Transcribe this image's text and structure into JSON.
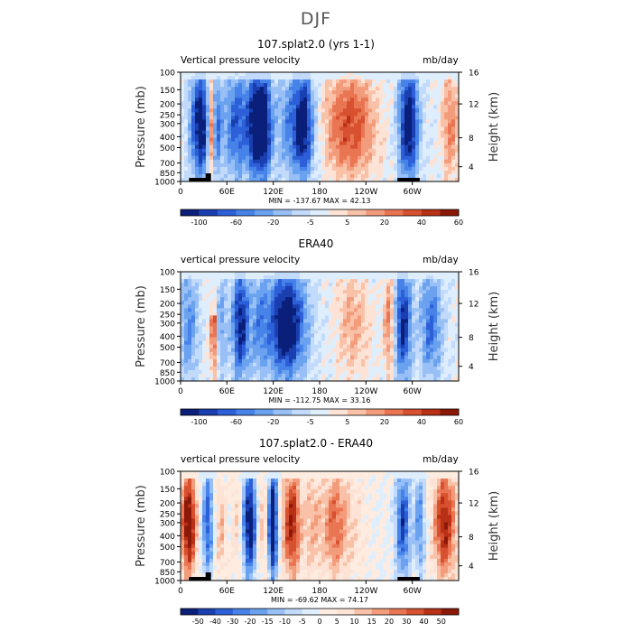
{
  "title": "DJF",
  "chart_data": [
    {
      "type": "heatmap",
      "title": "107.splat2.0 (yrs 1-1)",
      "left_label": "Vertical pressure velocity",
      "units": "mb/day",
      "ylabel": "Pressure (mb)",
      "y2label": "Height (km)",
      "xticks": [
        "0",
        "60E",
        "120E",
        "180",
        "120W",
        "60W"
      ],
      "yticks": [
        "100",
        "150",
        "200",
        "250",
        "300",
        "400",
        "500",
        "700",
        "850",
        "1000"
      ],
      "y2ticks": [
        "4",
        "8",
        "12",
        "16"
      ],
      "stats": "MIN = -137.67   MAX =  42.13",
      "colorbar_labels": [
        "-100",
        "-60",
        "-20",
        "-5",
        "5",
        "20",
        "40",
        "60"
      ],
      "colorbar_colors": [
        "#0a1f7a",
        "#1a3fb0",
        "#2c5fd8",
        "#4682e8",
        "#6aa2f0",
        "#98c0f6",
        "#c2dafb",
        "#dfeefd",
        "#fde3d6",
        "#f9c2a8",
        "#f39c7c",
        "#e97553",
        "#d7502f",
        "#b83015",
        "#8c1808"
      ]
    },
    {
      "type": "heatmap",
      "title": "ERA40",
      "left_label": "vertical pressure velocity",
      "units": "mb/day",
      "ylabel": "Pressure (mb)",
      "y2label": "Height (km)",
      "xticks": [
        "0",
        "60E",
        "120E",
        "180",
        "120W",
        "60W"
      ],
      "yticks": [
        "100",
        "150",
        "200",
        "250",
        "300",
        "400",
        "500",
        "700",
        "850",
        "1000"
      ],
      "y2ticks": [
        "4",
        "8",
        "12",
        "16"
      ],
      "stats": "MIN = -112.75   MAX =  33.16",
      "colorbar_labels": [
        "-100",
        "-60",
        "-20",
        "-5",
        "5",
        "20",
        "40",
        "60"
      ],
      "colorbar_colors": [
        "#0a1f7a",
        "#1a3fb0",
        "#2c5fd8",
        "#4682e8",
        "#6aa2f0",
        "#98c0f6",
        "#c2dafb",
        "#dfeefd",
        "#fde3d6",
        "#f9c2a8",
        "#f39c7c",
        "#e97553",
        "#d7502f",
        "#b83015",
        "#8c1808"
      ]
    },
    {
      "type": "heatmap",
      "title": "107.splat2.0 - ERA40",
      "left_label": "vertical pressure velocity",
      "units": "mb/day",
      "ylabel": "Pressure (mb)",
      "y2label": "Height (km)",
      "xticks": [
        "0",
        "60E",
        "120E",
        "180",
        "120W",
        "60W"
      ],
      "yticks": [
        "100",
        "150",
        "200",
        "250",
        "300",
        "400",
        "500",
        "700",
        "850",
        "1000"
      ],
      "y2ticks": [
        "4",
        "8",
        "12",
        "16"
      ],
      "stats": "MIN = -69.62   MAX =  74.17",
      "colorbar_labels": [
        "-50",
        "-40",
        "-30",
        "-20",
        "-15",
        "-10",
        "-5",
        "0",
        "5",
        "10",
        "15",
        "20",
        "30",
        "40",
        "50"
      ],
      "colorbar_colors": [
        "#0a1f7a",
        "#1a3fb0",
        "#2c5fd8",
        "#4682e8",
        "#6aa2f0",
        "#98c0f6",
        "#c2dafb",
        "#dfeefd",
        "#fdecdf",
        "#fde3d6",
        "#f9c2a8",
        "#f39c7c",
        "#e97553",
        "#d7502f",
        "#b83015",
        "#8c1808"
      ]
    }
  ]
}
